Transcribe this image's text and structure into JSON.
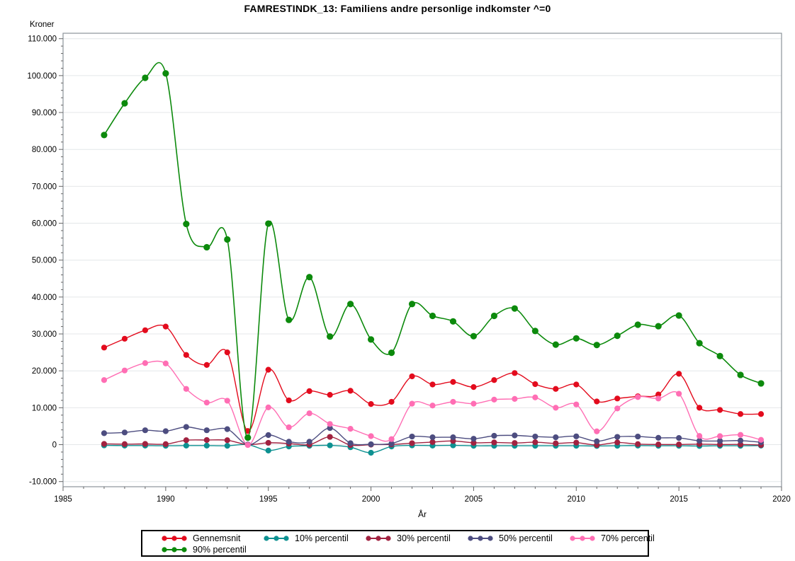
{
  "title": "FAMRESTINDK_13: Familiens andre personlige indkomster ^=0",
  "axes": {
    "y_label": "Kroner",
    "x_label": "År",
    "y_tick_labels": [
      "110.000",
      "100.000",
      "90.000",
      "80.000",
      "70.000",
      "60.000",
      "50.000",
      "40.000",
      "30.000",
      "20.000",
      "10.000",
      "0",
      "-10.000"
    ],
    "x_tick_labels": [
      "1985",
      "1990",
      "1995",
      "2000",
      "2005",
      "2010",
      "2015",
      "2020"
    ]
  },
  "style": {
    "frame_color": "#8b929a",
    "grid_color": "#e4e7e9",
    "tick_color": "#666666",
    "text_color": "#000000"
  },
  "chart_data": {
    "type": "line",
    "title": "FAMRESTINDK_13: Familiens andre personlige indkomster ^=0",
    "xlabel": "År",
    "ylabel": "Kroner",
    "xlim": [
      1985,
      2020
    ],
    "ylim": [
      -10000,
      110000
    ],
    "y_tick_step": 10000,
    "x_tick_step": 5,
    "grid": "horizontal",
    "legend_position": "bottom",
    "x": [
      1987,
      1988,
      1989,
      1990,
      1991,
      1992,
      1993,
      1994,
      1995,
      1996,
      1997,
      1998,
      1999,
      2000,
      2001,
      2002,
      2003,
      2004,
      2005,
      2006,
      2007,
      2008,
      2009,
      2010,
      2011,
      2012,
      2013,
      2014,
      2015,
      2016,
      2017,
      2018,
      2019
    ],
    "series": [
      {
        "name": "Gennemsnit",
        "color": "#e30b1d",
        "values": [
          26300,
          28700,
          31000,
          32000,
          24300,
          21600,
          25000,
          3700,
          20300,
          12000,
          14500,
          13500,
          14600,
          11000,
          11600,
          18500,
          16300,
          17000,
          15600,
          17500,
          19400,
          16400,
          15100,
          16300,
          11700,
          12500,
          13100,
          13600,
          19200,
          10000,
          9400,
          8300,
          8300
        ]
      },
      {
        "name": "10% percentil",
        "color": "#0d9191",
        "values": [
          -200,
          -250,
          -250,
          -300,
          -250,
          -250,
          -300,
          0,
          -1600,
          -500,
          -300,
          -200,
          -700,
          -2200,
          -500,
          -200,
          -250,
          -200,
          -300,
          -300,
          -300,
          -300,
          -300,
          -300,
          -350,
          -300,
          -250,
          -300,
          -300,
          -350,
          -300,
          -300,
          -250
        ]
      },
      {
        "name": "30% percentil",
        "color": "#a12240",
        "values": [
          200,
          150,
          200,
          150,
          1200,
          1250,
          1200,
          0,
          500,
          300,
          0,
          2100,
          -100,
          0,
          50,
          400,
          700,
          1000,
          500,
          600,
          450,
          650,
          350,
          550,
          -100,
          600,
          150,
          50,
          50,
          150,
          50,
          50,
          -100
        ]
      },
      {
        "name": "50% percentil",
        "color": "#4d4d80",
        "values": [
          3100,
          3300,
          3900,
          3650,
          4800,
          3900,
          4200,
          0,
          2600,
          800,
          800,
          4500,
          400,
          100,
          300,
          2200,
          2000,
          2000,
          1600,
          2400,
          2500,
          2200,
          2000,
          2250,
          900,
          2100,
          2200,
          1850,
          1800,
          1050,
          1000,
          1100,
          650
        ]
      },
      {
        "name": "70% percentil",
        "color": "#ff6eb4",
        "values": [
          17500,
          20100,
          22100,
          22000,
          15100,
          11400,
          11900,
          -100,
          10100,
          4700,
          8500,
          5600,
          4300,
          2300,
          1500,
          11100,
          10600,
          11600,
          11100,
          12200,
          12400,
          12800,
          10000,
          10900,
          3600,
          9800,
          12900,
          12500,
          13800,
          2350,
          2300,
          2650,
          1300
        ]
      },
      {
        "name": "90% percentil",
        "color": "#0c8a0c",
        "values": [
          83900,
          92500,
          99400,
          100600,
          59800,
          53500,
          55600,
          1900,
          59900,
          33800,
          45400,
          29300,
          38100,
          28500,
          24900,
          38100,
          34900,
          33400,
          29400,
          34900,
          36900,
          30800,
          27100,
          28800,
          27000,
          29500,
          32500,
          32100,
          35000,
          27500,
          24000,
          18900,
          16600
        ]
      }
    ]
  }
}
